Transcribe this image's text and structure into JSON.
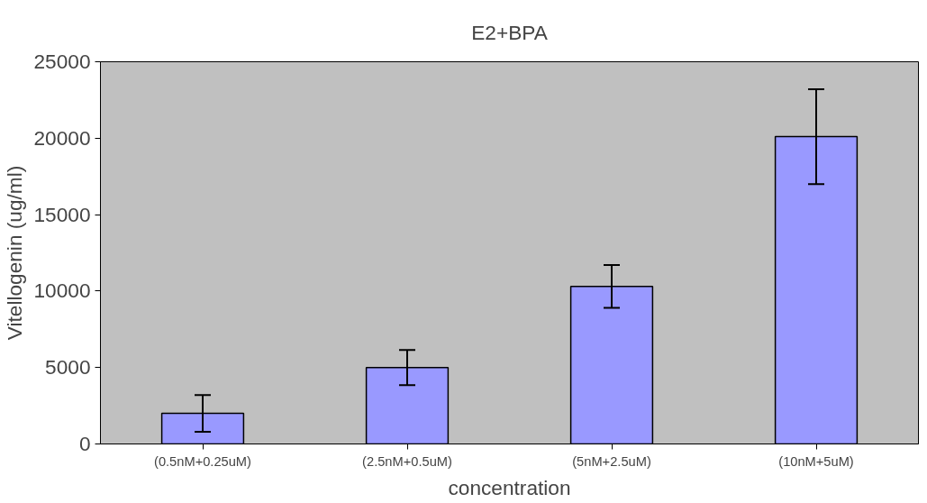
{
  "chart_data": {
    "type": "bar",
    "title": "E2+BPA",
    "xlabel": "concentration",
    "ylabel": "Vitellogenin (ug/ml)",
    "categories": [
      "(0.5nM+0.25uM)",
      "(2.5nM+0.5uM)",
      "(5nM+2.5uM)",
      "(10nM+5uM)"
    ],
    "values": [
      2000,
      5000,
      10300,
      20100
    ],
    "errors": [
      1200,
      1150,
      1400,
      3100
    ],
    "color": "#9999ff",
    "ylim": [
      0,
      25000
    ],
    "yticks": [
      0,
      5000,
      10000,
      15000,
      20000,
      25000
    ],
    "grid": false
  }
}
